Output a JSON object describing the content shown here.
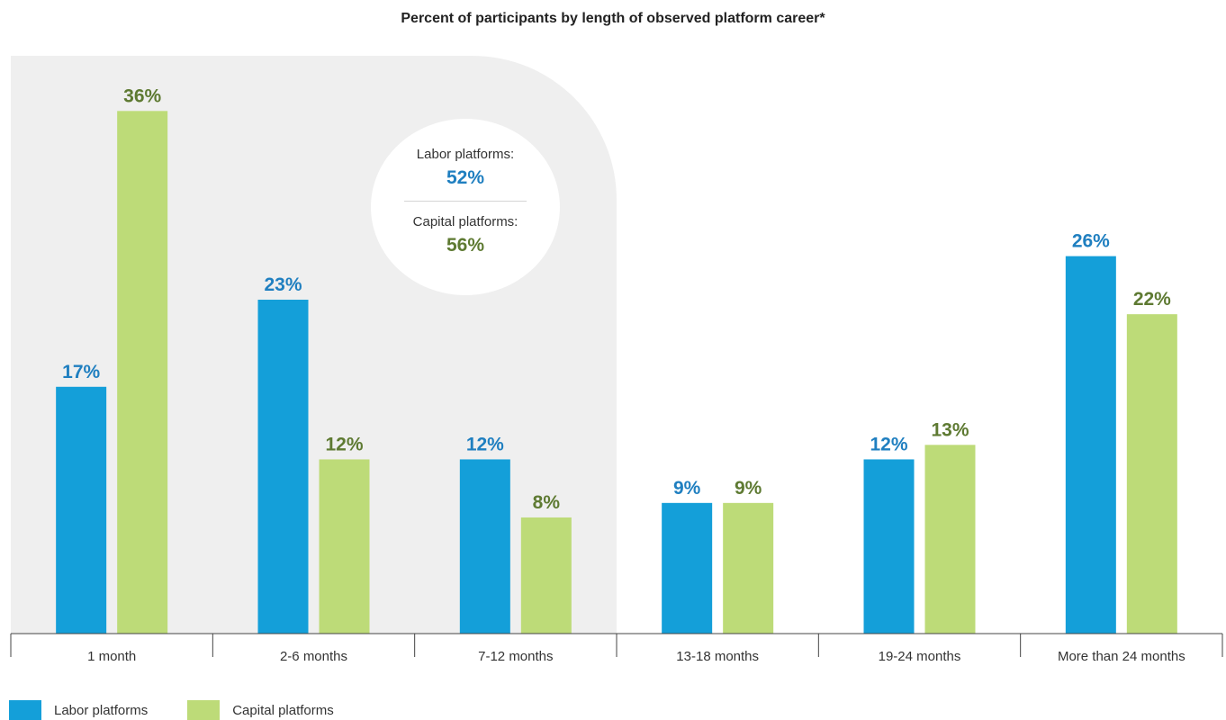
{
  "chart_data": {
    "type": "bar",
    "title": "Percent of participants by length of observed platform career*",
    "categories": [
      "1 month",
      "2-6 months",
      "7-12 months",
      "13-18 months",
      "19-24 months",
      "More than 24 months"
    ],
    "series": [
      {
        "name": "Labor platforms",
        "color": "#149fd9",
        "label_color": "#1f7fc0",
        "values": [
          17,
          23,
          12,
          9,
          12,
          26
        ],
        "labels": [
          "17%",
          "23%",
          "12%",
          "9%",
          "12%",
          "26%"
        ]
      },
      {
        "name": "Capital platforms",
        "color": "#bddb78",
        "label_color": "#5e7a32",
        "values": [
          36,
          12,
          8,
          9,
          13,
          22
        ],
        "labels": [
          "36%",
          "12%",
          "8%",
          "9%",
          "13%",
          "22%"
        ]
      }
    ],
    "ylim": [
      0,
      36
    ],
    "grid": false,
    "legend_position": "bottom-left",
    "highlight_region": {
      "categories": [
        "1 month",
        "2-6 months",
        "7-12 months"
      ],
      "color": "#efefef"
    },
    "annotation": {
      "labor_label": "Labor platforms:",
      "labor_value": "52%",
      "capital_label": "Capital platforms:",
      "capital_value": "56%"
    }
  }
}
